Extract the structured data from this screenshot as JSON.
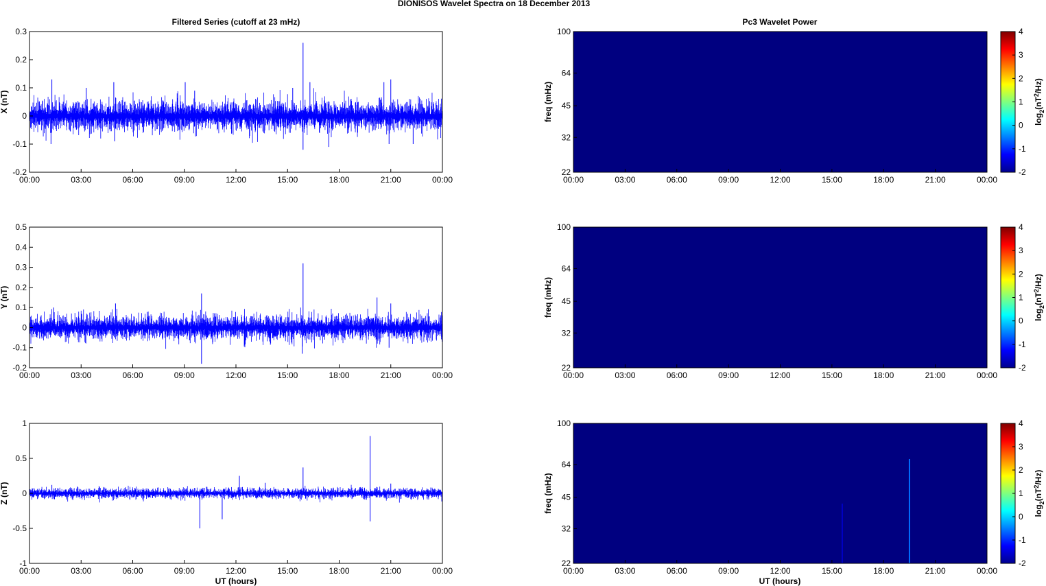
{
  "figure": {
    "title": "DIONISOS Wavelet Spectra on 18 December  2013",
    "left_column_title": "Filtered Series (cutoff at 23 mHz)",
    "right_column_title": "Pc3 Wavelet Power",
    "xlabel": "UT (hours)",
    "time_ticks": [
      "00:00",
      "03:00",
      "06:00",
      "09:00",
      "12:00",
      "15:00",
      "18:00",
      "21:00",
      "00:00"
    ]
  },
  "colors": {
    "series": "#0000ff",
    "spectrum_background": "#00008f",
    "axes_frame": "#000000"
  },
  "chart_data": [
    {
      "type": "line",
      "component": "X",
      "ylabel": "X (nT)",
      "xlim_hours": [
        0,
        24
      ],
      "ylim": [
        -0.2,
        0.3
      ],
      "yticks": [
        -0.2,
        -0.1,
        0,
        0.1,
        0.2,
        0.3
      ],
      "ytick_labels": [
        "-0.2",
        "-0.1",
        "0",
        "0.1",
        "0.2",
        "0.3"
      ],
      "envelope_amplitude": 0.03,
      "spikes": [
        {
          "t": 1.3,
          "v": 0.13
        },
        {
          "t": 1.25,
          "v": -0.1
        },
        {
          "t": 3.3,
          "v": 0.1
        },
        {
          "t": 4.9,
          "v": 0.12
        },
        {
          "t": 4.95,
          "v": -0.09
        },
        {
          "t": 9.05,
          "v": 0.12
        },
        {
          "t": 9.6,
          "v": 0.09
        },
        {
          "t": 15.3,
          "v": 0.1
        },
        {
          "t": 15.9,
          "v": 0.26
        },
        {
          "t": 15.9,
          "v": -0.12
        },
        {
          "t": 16.3,
          "v": 0.12
        },
        {
          "t": 17.4,
          "v": -0.11
        },
        {
          "t": 20.6,
          "v": 0.12
        },
        {
          "t": 21.0,
          "v": 0.13
        },
        {
          "t": 20.9,
          "v": -0.1
        },
        {
          "t": 22.3,
          "v": -0.1
        }
      ]
    },
    {
      "type": "line",
      "component": "Y",
      "ylabel": "Y (nT)",
      "xlim_hours": [
        0,
        24
      ],
      "ylim": [
        -0.2,
        0.5
      ],
      "yticks": [
        -0.2,
        -0.1,
        0,
        0.1,
        0.2,
        0.3,
        0.4,
        0.5
      ],
      "ytick_labels": [
        "-0.2",
        "-0.1",
        "0",
        "0.1",
        "0.2",
        "0.3",
        "0.4",
        "0.5"
      ],
      "envelope_amplitude": 0.035,
      "spikes": [
        {
          "t": 1.4,
          "v": 0.1
        },
        {
          "t": 5.0,
          "v": 0.12
        },
        {
          "t": 10.0,
          "v": 0.17
        },
        {
          "t": 10.0,
          "v": -0.18
        },
        {
          "t": 15.9,
          "v": 0.32
        },
        {
          "t": 15.85,
          "v": -0.13
        },
        {
          "t": 20.2,
          "v": 0.15
        },
        {
          "t": 21.0,
          "v": 0.12
        },
        {
          "t": 20.9,
          "v": -0.1
        }
      ]
    },
    {
      "type": "line",
      "component": "Z",
      "ylabel": "Z (nT)",
      "xlim_hours": [
        0,
        24
      ],
      "ylim": [
        -1,
        1
      ],
      "yticks": [
        -1,
        -0.5,
        0,
        0.5,
        1
      ],
      "ytick_labels": [
        "-1",
        "-0.5",
        "0",
        "0.5",
        "1"
      ],
      "envelope_amplitude": 0.04,
      "spikes": [
        {
          "t": 1.3,
          "v": 0.12
        },
        {
          "t": 9.9,
          "v": -0.5
        },
        {
          "t": 11.2,
          "v": -0.37
        },
        {
          "t": 12.2,
          "v": 0.25
        },
        {
          "t": 13.7,
          "v": 0.15
        },
        {
          "t": 15.9,
          "v": 0.37
        },
        {
          "t": 19.8,
          "v": 0.82
        },
        {
          "t": 19.8,
          "v": -0.4
        },
        {
          "t": 21.0,
          "v": 0.14
        }
      ]
    },
    {
      "type": "heatmap",
      "component": "X",
      "ylabel": "freq (mHz)",
      "ylim_mHz": [
        22,
        100
      ],
      "yscale": "log",
      "yticks": [
        22,
        32,
        45,
        64,
        100
      ],
      "clim": [
        -2,
        4
      ],
      "colorbar_ticks": [
        -2,
        -1,
        0,
        1,
        2,
        3,
        4
      ],
      "colorbar_label": "log2(nT2/Hz)",
      "background_level": -2,
      "features": []
    },
    {
      "type": "heatmap",
      "component": "Y",
      "ylabel": "freq (mHz)",
      "ylim_mHz": [
        22,
        100
      ],
      "yscale": "log",
      "yticks": [
        22,
        32,
        45,
        64,
        100
      ],
      "clim": [
        -2,
        4
      ],
      "colorbar_ticks": [
        -2,
        -1,
        0,
        1,
        2,
        3,
        4
      ],
      "colorbar_label": "log2(nT2/Hz)",
      "background_level": -2,
      "features": []
    },
    {
      "type": "heatmap",
      "component": "Z",
      "ylabel": "freq (mHz)",
      "ylim_mHz": [
        22,
        100
      ],
      "yscale": "log",
      "yticks": [
        22,
        32,
        45,
        64,
        100
      ],
      "clim": [
        -2,
        4
      ],
      "colorbar_ticks": [
        -2,
        -1,
        0,
        1,
        2,
        3,
        4
      ],
      "colorbar_label": "log2(nT2/Hz)",
      "background_level": -2,
      "features": [
        {
          "t": 15.6,
          "f_min": 22,
          "f_max": 42,
          "level": -1.6
        },
        {
          "t": 19.5,
          "f_min": 22,
          "f_max": 68,
          "level": -0.6
        }
      ]
    }
  ]
}
